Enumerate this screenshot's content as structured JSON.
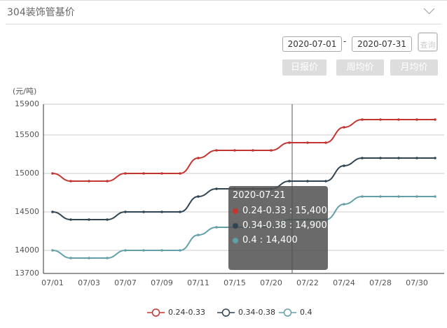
{
  "header": {
    "title": "304装饰管基价"
  },
  "controls": {
    "start_date": "2020-07-01",
    "separator": "-",
    "end_date": "2020-07-31",
    "query": "查询",
    "buttons": [
      "日报价",
      "周均价",
      "月均价"
    ]
  },
  "tooltip": {
    "title": "2020-07-21",
    "items": [
      "0.24-0.33 : 15,400",
      "0.34-0.38 : 14,900",
      "0.4 : 14,400"
    ]
  },
  "chart_data": {
    "type": "line",
    "y_label": "(元/吨)",
    "categories": [
      "07/01",
      null,
      "07/03",
      null,
      "07/07",
      null,
      "07/09",
      null,
      "07/11",
      null,
      "07/15",
      null,
      "07/20",
      null,
      "07/22",
      null,
      "07/24",
      null,
      "07/28",
      null,
      "07/30",
      null
    ],
    "series": [
      {
        "name": "0.24-0.33",
        "color": "#c23531",
        "values": [
          15000,
          14900,
          14900,
          14900,
          15000,
          15000,
          15000,
          15000,
          15200,
          15300,
          15300,
          15300,
          15300,
          15400,
          15400,
          15400,
          15600,
          15700,
          15700,
          15700,
          15700,
          15700
        ]
      },
      {
        "name": "0.34-0.38",
        "color": "#2f4554",
        "values": [
          14500,
          14400,
          14400,
          14400,
          14500,
          14500,
          14500,
          14500,
          14700,
          14800,
          14800,
          14800,
          14800,
          14900,
          14900,
          14900,
          15100,
          15200,
          15200,
          15200,
          15200,
          15200
        ]
      },
      {
        "name": "0.4",
        "color": "#61a0a8",
        "values": [
          14000,
          13900,
          13900,
          13900,
          14000,
          14000,
          14000,
          14000,
          14200,
          14300,
          14300,
          14300,
          14300,
          14400,
          14400,
          14400,
          14600,
          14700,
          14700,
          14700,
          14700,
          14700
        ]
      }
    ],
    "ylim": [
      13700,
      15900
    ],
    "yticks": [
      13700,
      14000,
      14500,
      15000,
      15500,
      15900
    ],
    "grid": true,
    "legend": "bottom"
  }
}
